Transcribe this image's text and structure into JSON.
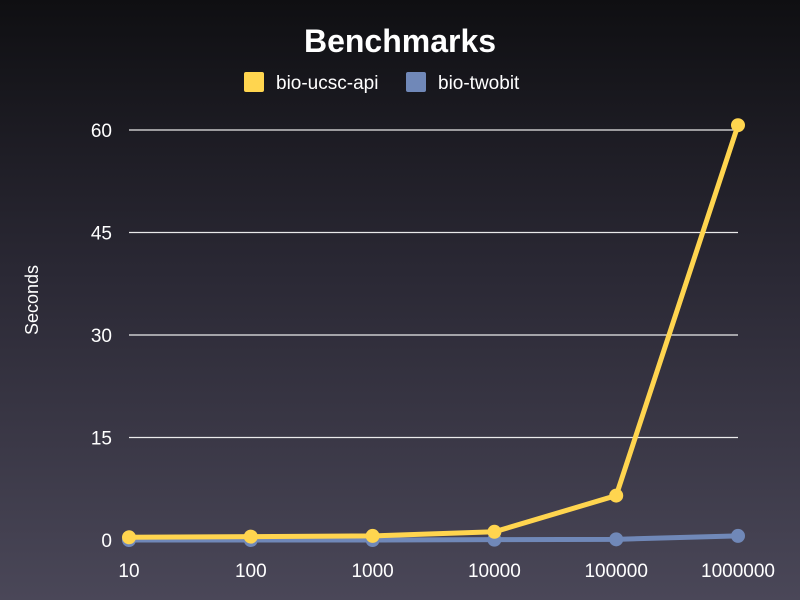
{
  "chart_data": {
    "type": "line",
    "title": "Benchmarks",
    "xlabel": "",
    "ylabel": "Seconds",
    "categories": [
      "10",
      "100",
      "1000",
      "10000",
      "100000",
      "1000000"
    ],
    "ylim": [
      0,
      60
    ],
    "yticks": [
      "0",
      "15",
      "30",
      "45",
      "60"
    ],
    "grid": true,
    "legend_position": "top-center",
    "series": [
      {
        "name": "bio-ucsc-api",
        "color": "#ffd54f",
        "values": [
          0.4,
          0.5,
          0.6,
          1.2,
          6.5,
          60.7
        ]
      },
      {
        "name": "bio-twobit",
        "color": "#7088b8",
        "values": [
          0.0,
          0.0,
          0.0,
          0.05,
          0.1,
          0.6
        ]
      }
    ]
  }
}
